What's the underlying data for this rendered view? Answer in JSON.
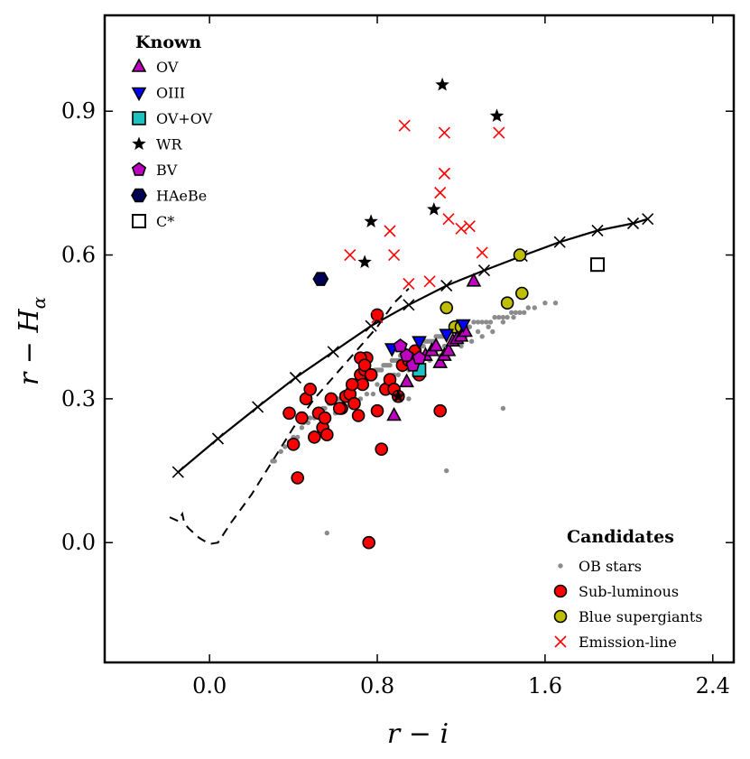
{
  "chart_data": {
    "type": "scatter",
    "xlabel": "r − i",
    "ylabel": "r − H",
    "ylabel_subscript": "α",
    "xlim": [
      -0.5,
      2.5
    ],
    "ylim": [
      -0.25,
      1.1
    ],
    "x_ticks": [
      0.0,
      0.8,
      1.6,
      2.4
    ],
    "x_tick_labels": [
      "0.0",
      "0.8",
      "1.6",
      "2.4"
    ],
    "y_ticks": [
      0.0,
      0.3,
      0.6,
      0.9
    ],
    "y_tick_labels": [
      "0.0",
      "0.3",
      "0.6",
      "0.9"
    ],
    "grid": false,
    "curves": [
      {
        "name": "Main sequence",
        "style": "solid",
        "color": "#000000",
        "marker": "x",
        "x": [
          -0.15,
          0.04,
          0.23,
          0.41,
          0.59,
          0.77,
          0.95,
          1.13,
          1.31,
          1.49,
          1.67,
          1.85,
          2.02,
          2.09
        ],
        "y": [
          0.147,
          0.217,
          0.283,
          0.344,
          0.398,
          0.452,
          0.496,
          0.536,
          0.568,
          0.598,
          0.627,
          0.651,
          0.666,
          0.675
        ]
      },
      {
        "name": "Early A-star reddening line",
        "style": "dashed",
        "color": "#000000",
        "x": [
          -0.19,
          -0.15,
          -0.13,
          -0.12,
          -0.1,
          -0.05,
          0.0,
          0.04,
          0.1,
          0.2,
          0.3,
          0.4,
          0.5,
          0.6,
          0.7,
          0.8,
          0.88,
          0.95
        ],
        "y": [
          0.053,
          0.045,
          0.06,
          0.04,
          0.03,
          0.01,
          -0.003,
          0.0,
          0.04,
          0.1,
          0.17,
          0.24,
          0.3,
          0.35,
          0.4,
          0.45,
          0.5,
          0.53
        ]
      }
    ],
    "series": [
      {
        "name": "OB stars",
        "group": "Candidates",
        "marker": "small-circle",
        "color": "#8c8c8c",
        "x": [
          0.3,
          0.31,
          0.34,
          0.36,
          0.38,
          0.4,
          0.42,
          0.44,
          0.45,
          0.47,
          0.48,
          0.5,
          0.51,
          0.53,
          0.54,
          0.55,
          0.57,
          0.58,
          0.6,
          0.61,
          0.62,
          0.63,
          0.64,
          0.65,
          0.66,
          0.67,
          0.68,
          0.69,
          0.7,
          0.71,
          0.72,
          0.73,
          0.74,
          0.75,
          0.76,
          0.77,
          0.78,
          0.79,
          0.8,
          0.81,
          0.82,
          0.83,
          0.84,
          0.85,
          0.86,
          0.87,
          0.88,
          0.89,
          0.9,
          0.91,
          0.92,
          0.93,
          0.94,
          0.95,
          0.96,
          0.97,
          0.98,
          0.99,
          1.0,
          1.01,
          1.02,
          1.03,
          1.04,
          1.05,
          1.06,
          1.07,
          1.08,
          1.09,
          1.1,
          1.11,
          1.12,
          1.13,
          1.14,
          1.15,
          1.16,
          1.17,
          1.18,
          1.19,
          1.2,
          1.22,
          1.24,
          1.26,
          1.28,
          1.3,
          1.32,
          1.34,
          1.36,
          1.38,
          1.4,
          1.42,
          1.44,
          1.46,
          1.48,
          1.5,
          1.52,
          1.55,
          1.6,
          1.65,
          0.7,
          0.75,
          0.8,
          0.85,
          0.9,
          0.95,
          1.0,
          1.05,
          1.1,
          1.15,
          1.2,
          1.25,
          1.3,
          1.35,
          0.5,
          0.55,
          0.6,
          0.65,
          0.72,
          0.78,
          0.84,
          0.88,
          0.92,
          0.98,
          1.02,
          1.08,
          1.12,
          1.18,
          1.22,
          1.28,
          1.33,
          1.4,
          1.45,
          0.56,
          1.13,
          1.4,
          0.95
        ],
        "y": [
          0.17,
          0.17,
          0.19,
          0.2,
          0.21,
          0.22,
          0.22,
          0.24,
          0.25,
          0.25,
          0.26,
          0.26,
          0.27,
          0.27,
          0.28,
          0.28,
          0.29,
          0.29,
          0.3,
          0.3,
          0.3,
          0.31,
          0.31,
          0.31,
          0.32,
          0.32,
          0.32,
          0.33,
          0.33,
          0.33,
          0.34,
          0.34,
          0.34,
          0.35,
          0.35,
          0.35,
          0.35,
          0.36,
          0.36,
          0.36,
          0.36,
          0.37,
          0.37,
          0.37,
          0.37,
          0.38,
          0.38,
          0.38,
          0.38,
          0.39,
          0.39,
          0.39,
          0.39,
          0.4,
          0.4,
          0.4,
          0.4,
          0.41,
          0.41,
          0.41,
          0.41,
          0.42,
          0.42,
          0.42,
          0.42,
          0.42,
          0.43,
          0.43,
          0.43,
          0.43,
          0.43,
          0.44,
          0.44,
          0.44,
          0.44,
          0.44,
          0.45,
          0.45,
          0.45,
          0.45,
          0.45,
          0.46,
          0.46,
          0.46,
          0.46,
          0.46,
          0.47,
          0.47,
          0.47,
          0.47,
          0.48,
          0.48,
          0.48,
          0.48,
          0.49,
          0.49,
          0.5,
          0.5,
          0.29,
          0.31,
          0.33,
          0.34,
          0.35,
          0.36,
          0.37,
          0.38,
          0.39,
          0.4,
          0.41,
          0.42,
          0.43,
          0.44,
          0.23,
          0.25,
          0.27,
          0.28,
          0.3,
          0.31,
          0.33,
          0.35,
          0.36,
          0.38,
          0.39,
          0.4,
          0.41,
          0.42,
          0.43,
          0.44,
          0.45,
          0.46,
          0.47,
          0.02,
          0.15,
          0.28,
          0.3
        ]
      },
      {
        "name": "Sub-luminous",
        "group": "Candidates",
        "marker": "circle",
        "color": "#ff0000",
        "x": [
          0.42,
          0.4,
          0.38,
          0.44,
          0.46,
          0.48,
          0.52,
          0.5,
          0.54,
          0.56,
          0.58,
          0.63,
          0.65,
          0.67,
          0.69,
          0.71,
          0.72,
          0.73,
          0.74,
          0.75,
          0.77,
          0.8,
          0.82,
          0.84,
          0.86,
          0.88,
          0.9,
          0.92,
          0.95,
          0.98,
          1.0,
          0.72,
          0.74,
          0.77,
          0.8,
          0.68,
          0.62,
          0.55,
          1.1,
          0.76
        ],
        "y": [
          0.135,
          0.205,
          0.27,
          0.26,
          0.3,
          0.32,
          0.27,
          0.22,
          0.24,
          0.225,
          0.3,
          0.28,
          0.305,
          0.31,
          0.29,
          0.265,
          0.35,
          0.33,
          0.36,
          0.385,
          0.35,
          0.275,
          0.195,
          0.32,
          0.34,
          0.32,
          0.305,
          0.37,
          0.38,
          0.4,
          0.35,
          0.385,
          0.37,
          0.35,
          0.475,
          0.33,
          0.28,
          0.26,
          0.275,
          0.0
        ]
      },
      {
        "name": "Blue supergiants",
        "group": "Candidates",
        "marker": "circle",
        "color": "#bfbf00",
        "x": [
          1.13,
          1.17,
          1.42,
          1.48,
          1.49,
          1.2
        ],
        "y": [
          0.49,
          0.45,
          0.5,
          0.6,
          0.52,
          0.45
        ]
      },
      {
        "name": "Emission-line",
        "group": "Candidates",
        "marker": "x",
        "color": "#ff0000",
        "x": [
          0.93,
          1.12,
          1.12,
          1.38,
          1.12,
          1.1,
          1.14,
          1.2,
          1.24,
          0.86,
          0.67,
          0.88,
          0.95,
          1.05,
          1.3,
          0.8
        ],
        "y": [
          0.87,
          0.855,
          0.77,
          0.855,
          0.77,
          0.73,
          0.675,
          0.655,
          0.66,
          0.65,
          0.6,
          0.6,
          0.54,
          0.545,
          0.605,
          0.47
        ]
      },
      {
        "name": "OV",
        "group": "Known",
        "marker": "triangle-up",
        "color": "#c000c0",
        "x": [
          0.88,
          0.97,
          1.0,
          1.03,
          1.06,
          1.08,
          1.1,
          1.12,
          1.14,
          1.16,
          1.18,
          1.2,
          1.22,
          1.26,
          0.94
        ],
        "y": [
          0.265,
          0.38,
          0.36,
          0.39,
          0.4,
          0.41,
          0.375,
          0.39,
          0.4,
          0.42,
          0.425,
          0.43,
          0.44,
          0.545,
          0.335
        ]
      },
      {
        "name": "OIII",
        "group": "Known",
        "marker": "triangle-down",
        "color": "#0000ff",
        "x": [
          0.87,
          1.0,
          1.13,
          1.21
        ],
        "y": [
          0.405,
          0.42,
          0.435,
          0.455
        ]
      },
      {
        "name": "OV+OV",
        "group": "Known",
        "marker": "square",
        "color": "#1fc0c0",
        "x": [
          1.0
        ],
        "y": [
          0.36
        ]
      },
      {
        "name": "WR",
        "group": "Known",
        "marker": "star",
        "color": "#000000",
        "x": [
          1.11,
          1.37,
          0.77,
          0.74,
          1.07,
          0.9
        ],
        "y": [
          0.955,
          0.89,
          0.67,
          0.585,
          0.695,
          0.305
        ]
      },
      {
        "name": "BV",
        "group": "Known",
        "marker": "pentagon",
        "color": "#c000c0",
        "x": [
          0.91,
          0.94,
          0.97,
          1.0
        ],
        "y": [
          0.41,
          0.39,
          0.37,
          0.385
        ]
      },
      {
        "name": "HAeBe",
        "group": "Known",
        "marker": "hexagon",
        "color": "#000055",
        "x": [
          0.53
        ],
        "y": [
          0.55
        ]
      },
      {
        "name": "C*",
        "group": "Known",
        "marker": "open-square",
        "color": "#000000",
        "x": [
          1.85
        ],
        "y": [
          0.58
        ]
      }
    ],
    "legends": [
      {
        "title": "Known",
        "placement": "top-left",
        "entries": [
          "OV",
          "OIII",
          "OV+OV",
          "WR",
          "BV",
          "HAeBe",
          "C*"
        ]
      },
      {
        "title": "Candidates",
        "placement": "bottom-right",
        "entries": [
          "OB stars",
          "Sub-luminous",
          "Blue supergiants",
          "Emission-line"
        ]
      }
    ]
  }
}
